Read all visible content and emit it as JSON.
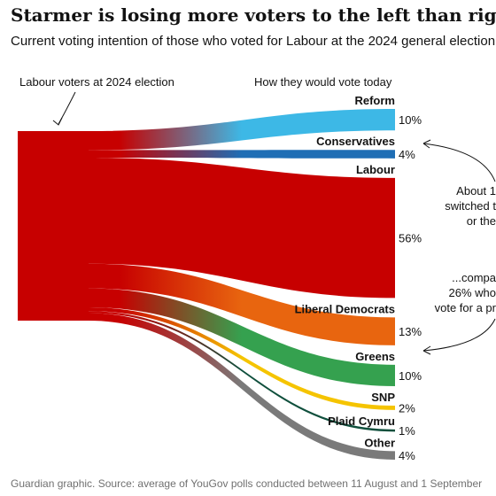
{
  "chart_data": {
    "type": "sankey",
    "title": "Starmer is losing more voters to the left than right",
    "subtitle": "Current voting intention of those who voted for Labour at the 2024 general election",
    "source_label": "Labour voters at 2024 election",
    "target_header": "How they would vote today",
    "flows": [
      {
        "name": "Reform",
        "value": 10,
        "label": "10%",
        "color": "#3db8e6"
      },
      {
        "name": "Conservatives",
        "value": 4,
        "label": "4%",
        "color": "#1f6eb5"
      },
      {
        "name": "Labour",
        "value": 56,
        "label": "56%",
        "color": "#c70000"
      },
      {
        "name": "Liberal Democrats",
        "value": 13,
        "label": "13%",
        "color": "#e8650f"
      },
      {
        "name": "Greens",
        "value": 10,
        "label": "10%",
        "color": "#35a14f"
      },
      {
        "name": "SNP",
        "value": 2,
        "label": "2%",
        "color": "#f5c400"
      },
      {
        "name": "Plaid Cymru",
        "value": 1,
        "label": "1%",
        "color": "#0f4f3c"
      },
      {
        "name": "Other",
        "value": 4,
        "label": "4%",
        "color": "#7a7a7a"
      }
    ],
    "source_color": "#c70000",
    "annotations": [
      {
        "lines": [
          "About 1",
          "switched t",
          "or the"
        ]
      },
      {
        "lines": [
          "...compa",
          "26% who",
          "vote for a pr"
        ]
      }
    ],
    "footer": "Guardian graphic. Source: average of YouGov polls conducted between 11 August and 1 September"
  }
}
